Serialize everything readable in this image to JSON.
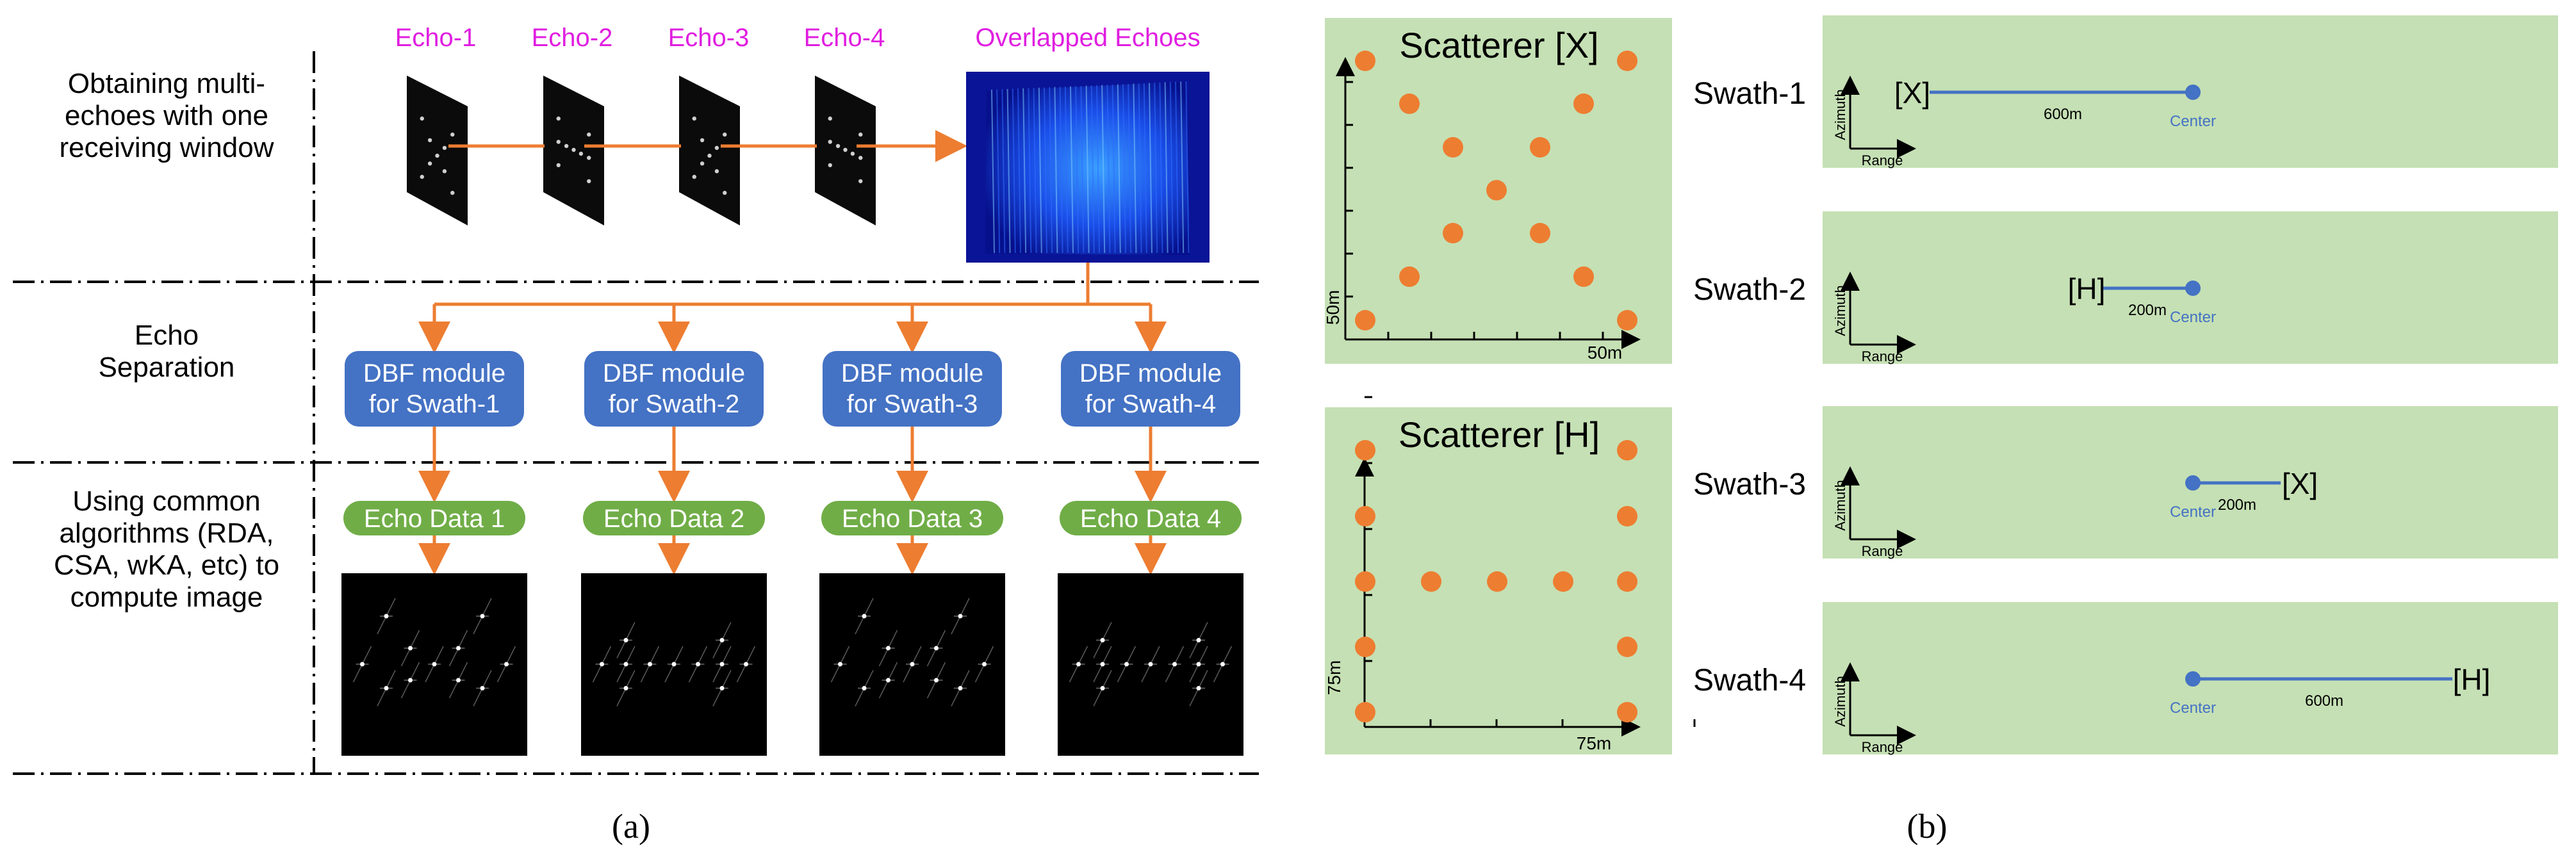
{
  "panel_a": {
    "caption": "(a)",
    "rows": [
      "Obtaining multi-\nechoes with one\nreceiving window",
      "Echo\nSeparation",
      "Using common\nalgorithms (RDA,\nCSA, wKA, etc) to\ncompute image"
    ],
    "echo_labels": [
      "Echo-1",
      "Echo-2",
      "Echo-3",
      "Echo-4"
    ],
    "overlapped_label": "Overlapped Echoes",
    "dbf_modules": [
      "DBF module\nfor Swath-1",
      "DBF module\nfor Swath-2",
      "DBF module\nfor Swath-3",
      "DBF module\nfor Swath-4"
    ],
    "echo_data": [
      "Echo Data 1",
      "Echo Data 2",
      "Echo Data 3",
      "Echo Data 4"
    ],
    "colors": {
      "echo_label": "#e01ee0",
      "arrow": "#ed7d31",
      "dbf_box": "#4472c4",
      "echo_data_box": "#70ad47"
    }
  },
  "panel_b": {
    "caption": "(b)",
    "scatterer_x": {
      "title": "Scatterer [X]",
      "x_label": "50m",
      "y_label": "50m"
    },
    "scatterer_h": {
      "title": "Scatterer [H]",
      "x_label": "75m",
      "y_label": "75m"
    },
    "swaths": [
      {
        "name": "Swath-1",
        "target": "[X]",
        "distance": "600m",
        "center": "Center",
        "azimuth": "Azimuth",
        "range": "Range"
      },
      {
        "name": "Swath-2",
        "target": "[H]",
        "distance": "200m",
        "center": "Center",
        "azimuth": "Azimuth",
        "range": "Range"
      },
      {
        "name": "Swath-3",
        "target": "[X]",
        "distance": "200m",
        "center": "Center",
        "azimuth": "Azimuth",
        "range": "Range"
      },
      {
        "name": "Swath-4",
        "target": "[H]",
        "distance": "600m",
        "center": "Center",
        "azimuth": "Azimuth",
        "range": "Range"
      }
    ],
    "colors": {
      "panel_bg": "#c5e0b4",
      "scatterer": "#ed7d31",
      "center": "#4472c4",
      "center_text": "#4472c4"
    }
  }
}
